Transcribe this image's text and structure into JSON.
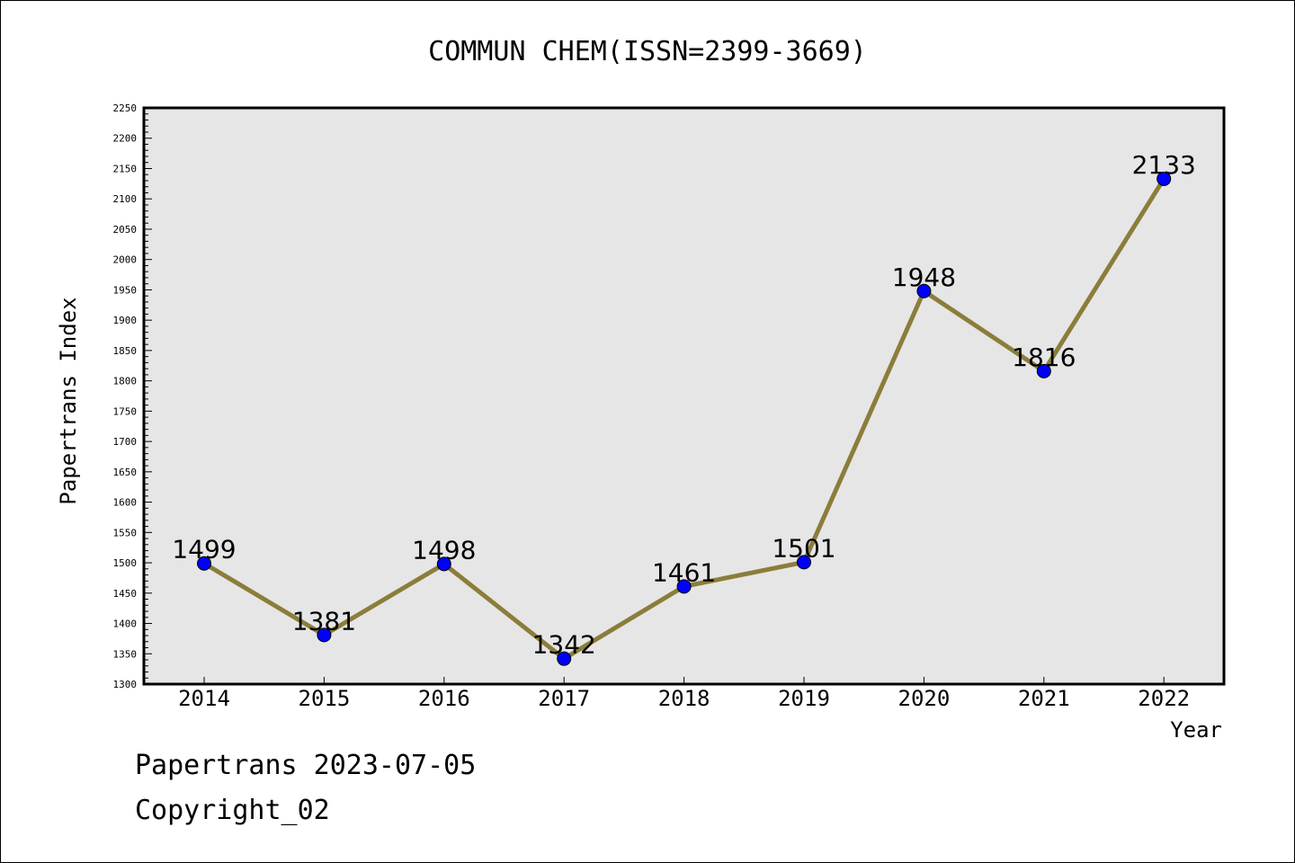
{
  "chart_data": {
    "type": "line",
    "title": "COMMUN CHEM(ISSN=2399-3669)",
    "xlabel": "Year",
    "ylabel": "Papertrans Index",
    "categories": [
      "2014",
      "2015",
      "2016",
      "2017",
      "2018",
      "2019",
      "2020",
      "2021",
      "2022"
    ],
    "values": [
      1499,
      1381,
      1498,
      1342,
      1461,
      1501,
      1948,
      1816,
      2133
    ],
    "data_labels": [
      "1499",
      "1381",
      "1498",
      "1342",
      "1461",
      "1501",
      "1948",
      "1816",
      "2133"
    ],
    "ylim": [
      1300,
      2250
    ],
    "yticks": [
      "1300",
      "1350",
      "1400",
      "1450",
      "1500",
      "1550",
      "1600",
      "1650",
      "1700",
      "1750",
      "1800",
      "1850",
      "1900",
      "1950",
      "2000",
      "2050",
      "2100",
      "2150",
      "2200",
      "2250"
    ],
    "grid": false,
    "colors": {
      "line": "#8b7d3a",
      "marker": "#0000ff",
      "plot_background": "#e6e6e6"
    }
  },
  "footer": {
    "line1": "Papertrans 2023-07-05",
    "line2": "Copyright_02"
  }
}
